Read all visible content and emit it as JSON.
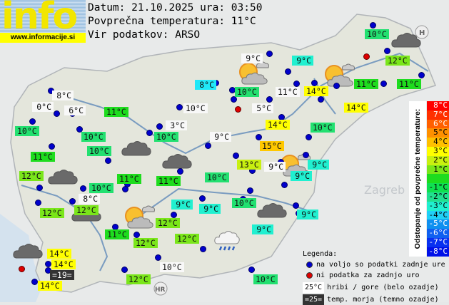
{
  "logo": {
    "word": "info",
    "url": "www.informacije.si"
  },
  "header": {
    "date_line": "Datum: 21.10.2025 ura: 03:50",
    "avg_line": "Povprečna temperatura: 11°C",
    "source_line": "Vir podatkov: ARSO"
  },
  "stations": [
    {
      "t": "10°C",
      "bg": "#22e070"
    },
    {
      "t": "12°C",
      "bg": "#7ae61a"
    },
    {
      "t": "9°C",
      "bg": "#f8f8f8"
    },
    {
      "t": "9°C",
      "bg": "#20f0d0"
    },
    {
      "t": "8°C",
      "bg": "#20e8f8"
    },
    {
      "t": "10°C",
      "bg": "#22e070"
    },
    {
      "t": "11°C",
      "bg": "#f8f8f8"
    },
    {
      "t": "14°C",
      "bg": "#ffff00"
    },
    {
      "t": "11°C",
      "bg": "#1edc1e"
    },
    {
      "t": "11°C",
      "bg": "#1edc1e"
    },
    {
      "t": "8°C",
      "bg": "#f8f8f8"
    },
    {
      "t": "0°C",
      "bg": "#f8f8f8"
    },
    {
      "t": "6°C",
      "bg": "#f8f8f8"
    },
    {
      "t": "11°C",
      "bg": "#1edc1e"
    },
    {
      "t": "10°C",
      "bg": "#f8f8f8"
    },
    {
      "t": "5°C",
      "bg": "#f8f8f8"
    },
    {
      "t": "14°C",
      "bg": "#ffff00"
    },
    {
      "t": "3°C",
      "bg": "#f8f8f8"
    },
    {
      "t": "14°C",
      "bg": "#ffff00"
    },
    {
      "t": "10°C",
      "bg": "#22e070"
    },
    {
      "t": "10°C",
      "bg": "#22e070"
    },
    {
      "t": "10°C",
      "bg": "#22e070"
    },
    {
      "t": "10°C",
      "bg": "#22e070"
    },
    {
      "t": "9°C",
      "bg": "#f8f8f8"
    },
    {
      "t": "15°C",
      "bg": "#ffc800"
    },
    {
      "t": "10°C",
      "bg": "#22e070"
    },
    {
      "t": "11°C",
      "bg": "#1edc1e"
    },
    {
      "t": "13°C",
      "bg": "#c8f010"
    },
    {
      "t": "9°C",
      "bg": "#f8f8f8"
    },
    {
      "t": "9°C",
      "bg": "#20f0d0"
    },
    {
      "t": "12°C",
      "bg": "#7ae61a"
    },
    {
      "t": "11°C",
      "bg": "#1edc1e"
    },
    {
      "t": "10°C",
      "bg": "#22e070"
    },
    {
      "t": "9°C",
      "bg": "#20f0d0"
    },
    {
      "t": "11°C",
      "bg": "#1edc1e"
    },
    {
      "t": "10°C",
      "bg": "#22e070"
    },
    {
      "t": "8°C",
      "bg": "#f8f8f8"
    },
    {
      "t": "9°C",
      "bg": "#20f0d0"
    },
    {
      "t": "9°C",
      "bg": "#20f0d0"
    },
    {
      "t": "10°C",
      "bg": "#22e070"
    },
    {
      "t": "9°C",
      "bg": "#20f0d0"
    },
    {
      "t": "12°C",
      "bg": "#7ae61a"
    },
    {
      "t": "12°C",
      "bg": "#7ae61a"
    },
    {
      "t": "12°C",
      "bg": "#7ae61a"
    },
    {
      "t": "11°C",
      "bg": "#1edc1e"
    },
    {
      "t": "12°C",
      "bg": "#7ae61a"
    },
    {
      "t": "12°C",
      "bg": "#7ae61a"
    },
    {
      "t": "9°C",
      "bg": "#20f0d0"
    },
    {
      "t": "14°C",
      "bg": "#ffff00"
    },
    {
      "t": "14°C",
      "bg": "#ffff00"
    },
    {
      "t": "=19=",
      "bg": "#333333"
    },
    {
      "t": "14°C",
      "bg": "#ffff00"
    },
    {
      "t": "10°C",
      "bg": "#f8f8f8"
    },
    {
      "t": "12°C",
      "bg": "#7ae61a"
    },
    {
      "t": "10°C",
      "bg": "#22e070"
    }
  ],
  "scale": {
    "title": "Odstopanje od povprečne temperature:",
    "steps": [
      {
        "t": "8°C",
        "bg": "#ff0000",
        "fg": "#ffffff"
      },
      {
        "t": "7°C",
        "bg": "#ff3000",
        "fg": "#ffffff"
      },
      {
        "t": "6°C",
        "bg": "#ff6000",
        "fg": "#ffffff"
      },
      {
        "t": "5°C",
        "bg": "#ff9000",
        "fg": "#000000"
      },
      {
        "t": "4°C",
        "bg": "#ffc000",
        "fg": "#000000"
      },
      {
        "t": "3°C",
        "bg": "#ffff00",
        "fg": "#000000"
      },
      {
        "t": "2°C",
        "bg": "#c8f010",
        "fg": "#000000"
      },
      {
        "t": "1°C",
        "bg": "#7ae61a",
        "fg": "#000000"
      },
      {
        "t": "",
        "bg": "#1edc1e",
        "fg": "#000000"
      },
      {
        "t": "-1°C",
        "bg": "#10e050",
        "fg": "#000000"
      },
      {
        "t": "-2°C",
        "bg": "#22e090",
        "fg": "#000000"
      },
      {
        "t": "-3°C",
        "bg": "#20f0d0",
        "fg": "#000000"
      },
      {
        "t": "-4°C",
        "bg": "#20d0f8",
        "fg": "#000000"
      },
      {
        "t": "-5°C",
        "bg": "#1090f0",
        "fg": "#ffffff"
      },
      {
        "t": "-6°C",
        "bg": "#1060f0",
        "fg": "#ffffff"
      },
      {
        "t": "-7°C",
        "bg": "#0830f0",
        "fg": "#ffffff"
      },
      {
        "t": "-8°C",
        "bg": "#0010e8",
        "fg": "#ffffff"
      }
    ]
  },
  "legend": {
    "title": "Legenda:",
    "blue_text": "na voljo so podatki zadnje ure",
    "red_text": "ni podatka za zadnjo uro",
    "mountain_sample": "25°C",
    "mountain_text": "hribi / gore (belo ozadje)",
    "sea_sample": "=25=",
    "sea_text": "temp. morja (temno ozadje)"
  },
  "map_labels": {
    "zagreb": "Zagreb",
    "hr": "HR",
    "h": "H"
  },
  "colors": {
    "blue_dot": "#0000cc",
    "red_dot": "#dd0000",
    "sea_label_fg": "#ffffff"
  }
}
